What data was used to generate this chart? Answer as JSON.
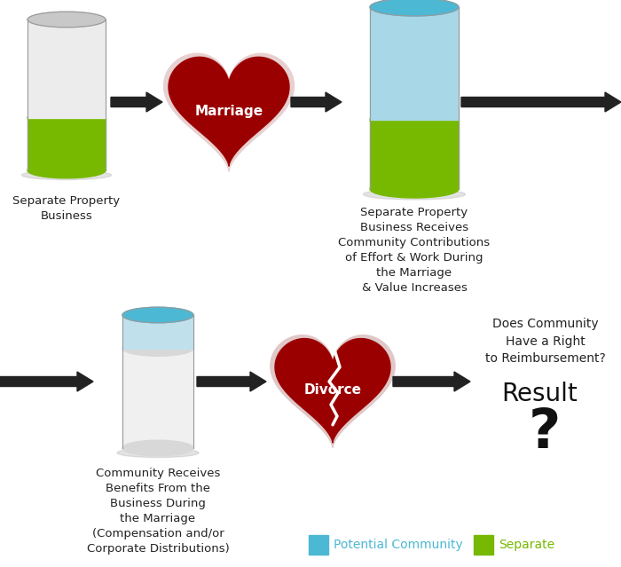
{
  "bg_color": "#ffffff",
  "gray_top": "#c8c8c8",
  "gray_body": "#ececec",
  "gray_body2": "#e0e0e0",
  "green": "#76b900",
  "blue_top": "#4db8d4",
  "blue_body": "#a8d8e8",
  "blue_body2": "#c0e0ec",
  "heart_red": "#9b0000",
  "heart_border": "#e0c0c0",
  "arrow_color": "#222222",
  "text_color": "#222222",
  "shadow_color": "#cccccc",
  "label1": "Separate Property\nBusiness",
  "label2": "Separate Property\nBusiness Receives\nCommunity Contributions\nof Effort & Work During\nthe Marriage\n& Value Increases",
  "label3": "Community Receives\nBenefits From the\nBusiness During\nthe Marriage\n(Compensation and/or\nCorporate Distributions)",
  "label_community": "Does Community\nHave a Right\nto Reimbursement?",
  "label_result": "Result",
  "label_q": "?",
  "legend_blue": "Potential Community",
  "legend_green": "Separate",
  "marriage_label": "Marriage",
  "divorce_label": "Divorce"
}
